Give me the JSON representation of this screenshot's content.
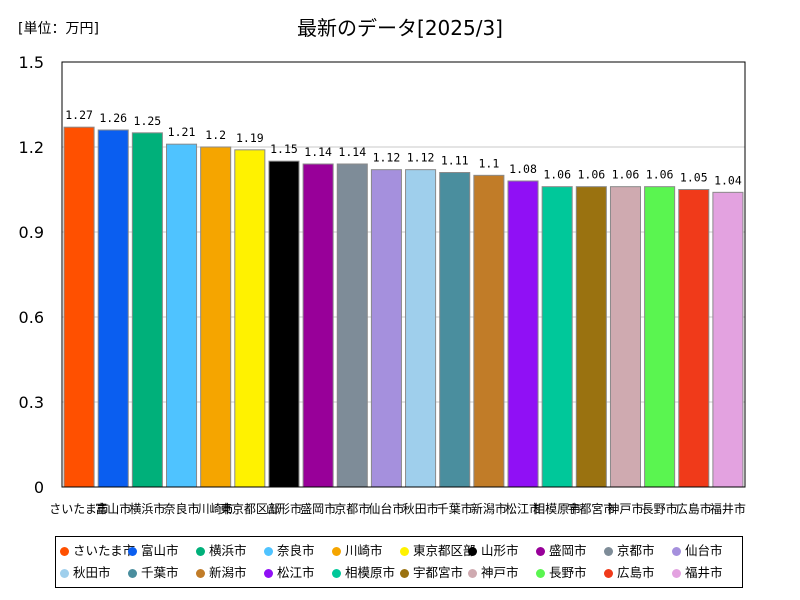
{
  "unit_label": "[単位：万円]",
  "chart_data": {
    "type": "bar",
    "title": "最新のデータ[2025/3]",
    "xlabel": "",
    "ylabel": "",
    "ylim": [
      0,
      1.5
    ],
    "yticks": [
      "0",
      "0.3",
      "0.6",
      "0.9",
      "1.2",
      "1.5"
    ],
    "yticks_values": [
      0,
      0.3,
      0.6,
      0.9,
      1.2,
      1.5
    ],
    "grid": true,
    "legend": "bottom",
    "categories": [
      "さいたま市",
      "富山市",
      "横浜市",
      "奈良市",
      "川崎市",
      "東京都区部",
      "山形市",
      "盛岡市",
      "京都市",
      "仙台市",
      "秋田市",
      "千葉市",
      "新潟市",
      "松江市",
      "相模原市",
      "宇都宮市",
      "神戸市",
      "長野市",
      "広島市",
      "福井市"
    ],
    "values": [
      1.27,
      1.26,
      1.25,
      1.21,
      1.2,
      1.19,
      1.15,
      1.14,
      1.14,
      1.12,
      1.12,
      1.11,
      1.1,
      1.08,
      1.06,
      1.06,
      1.06,
      1.06,
      1.05,
      1.04
    ],
    "value_labels": [
      "1.27",
      "1.26",
      "1.25",
      "1.21",
      "1.2",
      "1.19",
      "1.15",
      "1.14",
      "1.14",
      "1.12",
      "1.12",
      "1.11",
      "1.1",
      "1.08",
      "1.06",
      "1.06",
      "1.06",
      "1.06",
      "1.05",
      "1.04"
    ],
    "colors": [
      "#ff5000",
      "#0a5ef0",
      "#00b07a",
      "#4fc3ff",
      "#f5a500",
      "#fff200",
      "#000000",
      "#980099",
      "#7e8c98",
      "#a590dd",
      "#9fcfec",
      "#4a8e9e",
      "#c17c28",
      "#9010f5",
      "#00c89a",
      "#9a7210",
      "#cfaab0",
      "#5af550",
      "#f03a1a",
      "#e3a2e0"
    ]
  }
}
